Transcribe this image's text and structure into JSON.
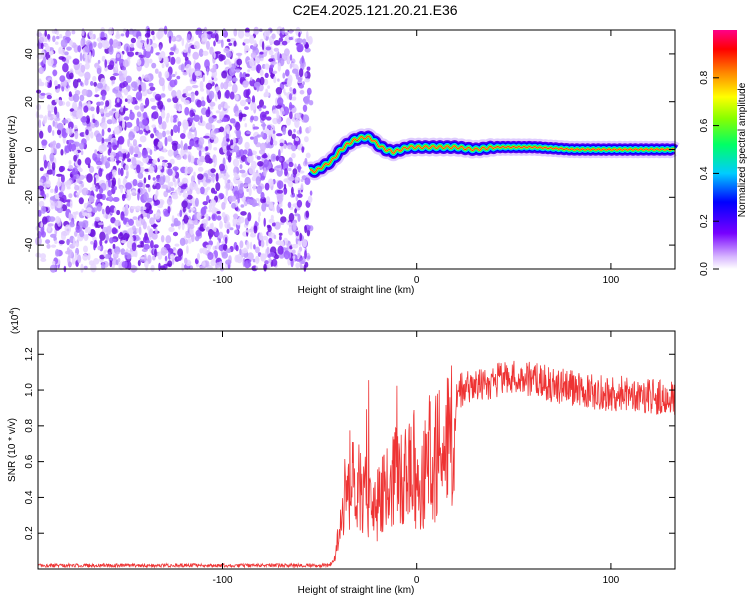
{
  "title": "C2E4.2025.121.20.21.E36",
  "chart_data": [
    {
      "type": "heatmap",
      "xlabel": "Height of straight line (km)",
      "ylabel": "Frequency (Hz)",
      "xlim": [
        -195,
        133
      ],
      "ylim": [
        -50,
        50
      ],
      "xticks": [
        -100,
        0,
        100
      ],
      "yticks": [
        -40,
        -20,
        0,
        20,
        40
      ],
      "noise_region": {
        "x": [
          -195,
          -55
        ],
        "y": [
          -50,
          50
        ]
      },
      "signal_ridge": {
        "x": [
          -55,
          -52,
          -48,
          -44,
          -40,
          -36,
          -32,
          -28,
          -24,
          -20,
          -16,
          -12,
          -8,
          -4,
          0,
          10,
          20,
          30,
          40,
          60,
          80,
          100,
          133
        ],
        "y": [
          -9,
          -9,
          -7,
          -5,
          -1,
          2,
          4,
          5,
          5,
          2,
          0,
          -1,
          0,
          1,
          1,
          1,
          1,
          0,
          1,
          1,
          0,
          0,
          0
        ]
      },
      "colorbar": {
        "label": "Normalized spectral amplitude",
        "range": [
          0,
          1
        ],
        "ticks": [
          0.0,
          0.2,
          0.4,
          0.6,
          0.8
        ]
      }
    },
    {
      "type": "line",
      "xlabel": "Height of straight line (km)",
      "ylabel": "SNR (10 * v/v)",
      "scale_label": "(x10",
      "scale_exponent": "4",
      "xlim": [
        -195,
        133
      ],
      "ylim": [
        0,
        1.33
      ],
      "xticks": [
        -100,
        0,
        100
      ],
      "yticks": [
        0.2,
        0.4,
        0.6,
        0.8,
        1.0,
        1.2
      ],
      "color": "#ee3333",
      "envelope": {
        "x": [
          -195,
          -45,
          -42,
          -38,
          -34,
          -30,
          -26,
          -22,
          -18,
          -14,
          -10,
          -6,
          -2,
          2,
          6,
          10,
          14,
          18,
          22,
          30,
          40,
          50,
          60,
          70,
          80,
          90,
          100,
          110,
          120,
          133
        ],
        "y": [
          0.02,
          0.02,
          0.06,
          0.45,
          0.6,
          0.5,
          0.48,
          0.35,
          0.5,
          0.5,
          0.62,
          0.6,
          0.68,
          0.58,
          0.75,
          0.72,
          0.88,
          0.92,
          1.0,
          1.03,
          1.05,
          1.07,
          1.06,
          1.03,
          1.01,
          0.99,
          0.98,
          0.98,
          0.97,
          0.95
        ]
      }
    }
  ]
}
